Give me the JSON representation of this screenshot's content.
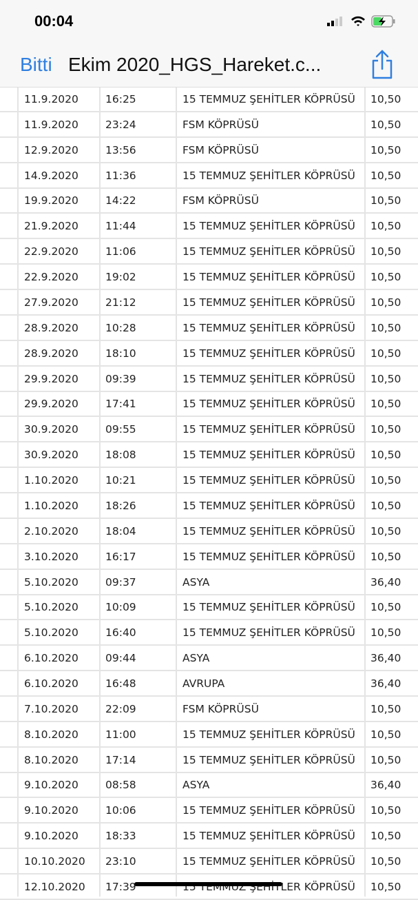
{
  "status_bar": {
    "time": "00:04",
    "icons": [
      "signal-icon",
      "wifi-icon",
      "battery-charging-icon"
    ],
    "battery_color": "#4cd964"
  },
  "nav": {
    "done_label": "Bitti",
    "title": "Ekim 2020_HGS_Hareket.c...",
    "share_icon": "share-icon",
    "accent": "#2f7fe0"
  },
  "rows": [
    [
      "11.9.2020",
      "16:25",
      "15 TEMMUZ ŞEHİTLER KÖPRÜSÜ",
      "10,50"
    ],
    [
      "11.9.2020",
      "23:24",
      "FSM KÖPRÜSÜ",
      "10,50"
    ],
    [
      "12.9.2020",
      "13:56",
      "FSM KÖPRÜSÜ",
      "10,50"
    ],
    [
      "14.9.2020",
      "11:36",
      "15 TEMMUZ ŞEHİTLER KÖPRÜSÜ",
      "10,50"
    ],
    [
      "19.9.2020",
      "14:22",
      "FSM KÖPRÜSÜ",
      "10,50"
    ],
    [
      "21.9.2020",
      "11:44",
      "15 TEMMUZ ŞEHİTLER KÖPRÜSÜ",
      "10,50"
    ],
    [
      "22.9.2020",
      "11:06",
      "15 TEMMUZ ŞEHİTLER KÖPRÜSÜ",
      "10,50"
    ],
    [
      "22.9.2020",
      "19:02",
      "15 TEMMUZ ŞEHİTLER KÖPRÜSÜ",
      "10,50"
    ],
    [
      "27.9.2020",
      "21:12",
      "15 TEMMUZ ŞEHİTLER KÖPRÜSÜ",
      "10,50"
    ],
    [
      "28.9.2020",
      "10:28",
      "15 TEMMUZ ŞEHİTLER KÖPRÜSÜ",
      "10,50"
    ],
    [
      "28.9.2020",
      "18:10",
      "15 TEMMUZ ŞEHİTLER KÖPRÜSÜ",
      "10,50"
    ],
    [
      "29.9.2020",
      "09:39",
      "15 TEMMUZ ŞEHİTLER KÖPRÜSÜ",
      "10,50"
    ],
    [
      "29.9.2020",
      "17:41",
      "15 TEMMUZ ŞEHİTLER KÖPRÜSÜ",
      "10,50"
    ],
    [
      "30.9.2020",
      "09:55",
      "15 TEMMUZ ŞEHİTLER KÖPRÜSÜ",
      "10,50"
    ],
    [
      "30.9.2020",
      "18:08",
      "15 TEMMUZ ŞEHİTLER KÖPRÜSÜ",
      "10,50"
    ],
    [
      "1.10.2020",
      "10:21",
      "15 TEMMUZ ŞEHİTLER KÖPRÜSÜ",
      "10,50"
    ],
    [
      "1.10.2020",
      "18:26",
      "15 TEMMUZ ŞEHİTLER KÖPRÜSÜ",
      "10,50"
    ],
    [
      "2.10.2020",
      "18:04",
      "15 TEMMUZ ŞEHİTLER KÖPRÜSÜ",
      "10,50"
    ],
    [
      "3.10.2020",
      "16:17",
      "15 TEMMUZ ŞEHİTLER KÖPRÜSÜ",
      "10,50"
    ],
    [
      "5.10.2020",
      "09:37",
      "ASYA",
      "36,40"
    ],
    [
      "5.10.2020",
      "10:09",
      "15 TEMMUZ ŞEHİTLER KÖPRÜSÜ",
      "10,50"
    ],
    [
      "5.10.2020",
      "16:40",
      "15 TEMMUZ ŞEHİTLER KÖPRÜSÜ",
      "10,50"
    ],
    [
      "6.10.2020",
      "09:44",
      "ASYA",
      "36,40"
    ],
    [
      "6.10.2020",
      "16:48",
      "AVRUPA",
      "36,40"
    ],
    [
      "7.10.2020",
      "22:09",
      "FSM KÖPRÜSÜ",
      "10,50"
    ],
    [
      "8.10.2020",
      "11:00",
      "15 TEMMUZ ŞEHİTLER KÖPRÜSÜ",
      "10,50"
    ],
    [
      "8.10.2020",
      "17:14",
      "15 TEMMUZ ŞEHİTLER KÖPRÜSÜ",
      "10,50"
    ],
    [
      "9.10.2020",
      "08:58",
      "ASYA",
      "36,40"
    ],
    [
      "9.10.2020",
      "10:06",
      "15 TEMMUZ ŞEHİTLER KÖPRÜSÜ",
      "10,50"
    ],
    [
      "9.10.2020",
      "18:33",
      "15 TEMMUZ ŞEHİTLER KÖPRÜSÜ",
      "10,50"
    ],
    [
      "10.10.2020",
      "23:10",
      "15 TEMMUZ ŞEHİTLER KÖPRÜSÜ",
      "10,50"
    ],
    [
      "12.10.2020",
      "17:39",
      "15 TEMMUZ ŞEHİTLER KÖPRÜSÜ",
      "10,50"
    ]
  ]
}
